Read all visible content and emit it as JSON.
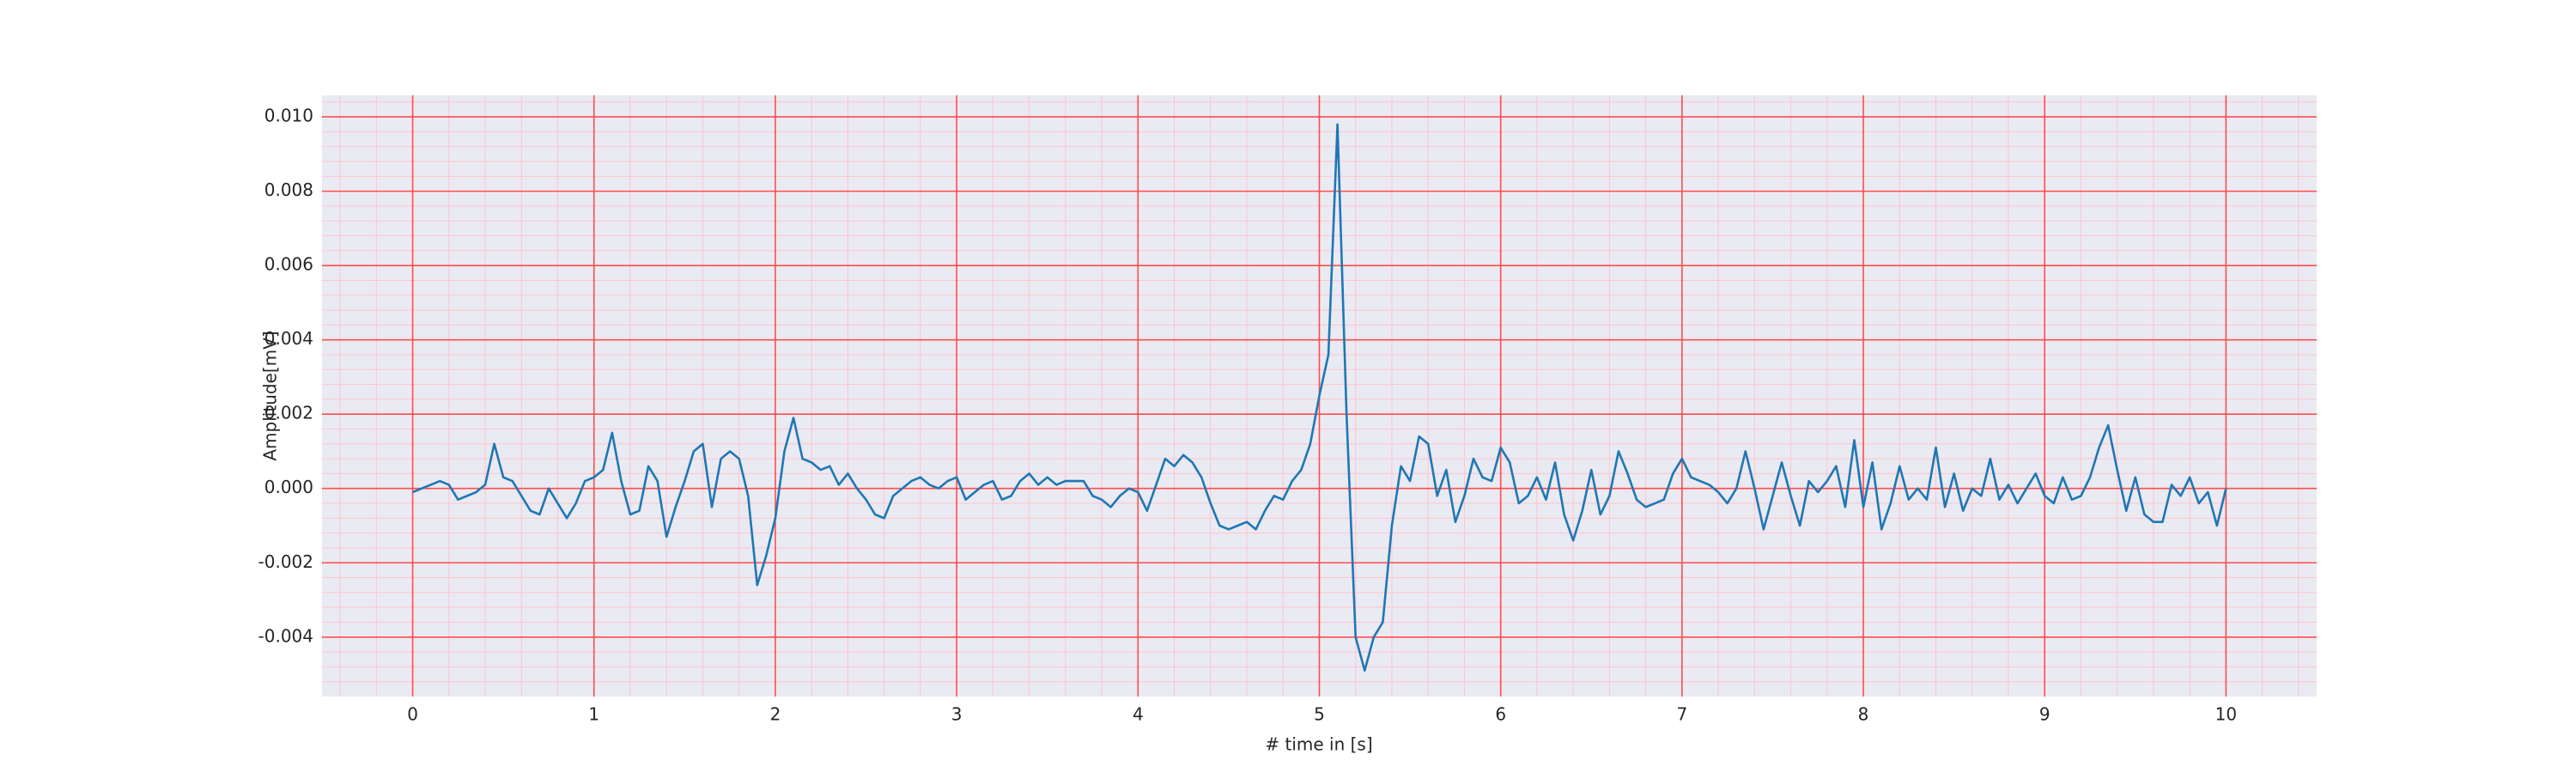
{
  "chart_data": {
    "type": "line",
    "x_label": "# time in [s]",
    "y_label": "Amplitude[mV]",
    "color": "#1f77b4",
    "plot_background": "#eaeaf2",
    "grid": true,
    "major_grid_color": "#ff4d4d",
    "minor_grid_color": "#ffc4cf",
    "xlim": [
      -0.5,
      10.5
    ],
    "ylim": [
      -0.0056,
      0.01058
    ],
    "xticks": [
      0,
      1,
      2,
      3,
      4,
      5,
      6,
      7,
      8,
      9,
      10
    ],
    "yticks": [
      -0.004,
      -0.002,
      {
        "value": 0,
        "label": "0.000"
      },
      0.002,
      0.004,
      0.006,
      0.008,
      {
        "value": 0.01,
        "label": "0.010"
      }
    ],
    "xminorticks": [
      -0.4,
      -0.2,
      0.2,
      0.4,
      0.6,
      0.8,
      1.2,
      1.4,
      1.6,
      1.8,
      2.2,
      2.4,
      2.6,
      2.8,
      3.2,
      3.4,
      3.6,
      3.8,
      4.2,
      4.4,
      4.6,
      4.8,
      5.2,
      5.4,
      5.6,
      5.8,
      6.2,
      6.4,
      6.6,
      6.8,
      7.2,
      7.4,
      7.6,
      7.8,
      8.2,
      8.4,
      8.6,
      8.8,
      9.2,
      9.4,
      9.6,
      9.8,
      10.2,
      10.4
    ],
    "yminorticks": [
      -0.0052,
      -0.0048,
      -0.0044,
      -0.0036,
      -0.0032,
      -0.0028,
      -0.0024,
      -0.0016,
      -0.0012,
      -0.0008,
      -0.0004,
      0.0004,
      0.0008,
      0.0012,
      0.0016,
      0.0024,
      0.0028,
      0.0032,
      0.0036,
      0.0044,
      0.0048,
      0.0052,
      0.0056,
      0.0064,
      0.0068,
      0.0072,
      0.0076,
      0.0084,
      0.0088,
      0.0092,
      0.0096,
      0.0104
    ],
    "x": [
      0,
      0.05,
      0.1,
      0.15,
      0.2,
      0.25,
      0.3,
      0.35,
      0.4,
      0.45,
      0.5,
      0.55,
      0.6,
      0.65,
      0.7,
      0.75,
      0.8,
      0.85,
      0.9,
      0.95,
      1,
      1.05,
      1.1,
      1.15,
      1.2,
      1.25,
      1.3,
      1.35,
      1.4,
      1.45,
      1.5,
      1.55,
      1.6,
      1.65,
      1.7,
      1.75,
      1.8,
      1.85,
      1.9,
      1.95,
      2,
      2.05,
      2.1,
      2.15,
      2.2,
      2.25,
      2.3,
      2.35,
      2.4,
      2.45,
      2.5,
      2.55,
      2.6,
      2.65,
      2.7,
      2.75,
      2.8,
      2.85,
      2.9,
      2.95,
      3,
      3.05,
      3.1,
      3.15,
      3.2,
      3.25,
      3.3,
      3.35,
      3.4,
      3.45,
      3.5,
      3.55,
      3.6,
      3.65,
      3.7,
      3.75,
      3.8,
      3.85,
      3.9,
      3.95,
      4,
      4.05,
      4.1,
      4.15,
      4.2,
      4.25,
      4.3,
      4.35,
      4.4,
      4.45,
      4.5,
      4.55,
      4.6,
      4.65,
      4.7,
      4.75,
      4.8,
      4.85,
      4.9,
      4.95,
      5,
      5.05,
      5.1,
      5.15,
      5.2,
      5.25,
      5.3,
      5.35,
      5.4,
      5.45,
      5.5,
      5.55,
      5.6,
      5.65,
      5.7,
      5.75,
      5.8,
      5.85,
      5.9,
      5.95,
      6,
      6.05,
      6.1,
      6.15,
      6.2,
      6.25,
      6.3,
      6.35,
      6.4,
      6.45,
      6.5,
      6.55,
      6.6,
      6.65,
      6.7,
      6.75,
      6.8,
      6.85,
      6.9,
      6.95,
      7,
      7.05,
      7.1,
      7.15,
      7.2,
      7.25,
      7.3,
      7.35,
      7.4,
      7.45,
      7.5,
      7.55,
      7.6,
      7.65,
      7.7,
      7.75,
      7.8,
      7.85,
      7.9,
      7.95,
      8,
      8.05,
      8.1,
      8.15,
      8.2,
      8.25,
      8.3,
      8.35,
      8.4,
      8.45,
      8.5,
      8.55,
      8.6,
      8.65,
      8.7,
      8.75,
      8.8,
      8.85,
      8.9,
      8.95,
      9,
      9.05,
      9.1,
      9.15,
      9.2,
      9.25,
      9.3,
      9.35,
      9.4,
      9.45,
      9.5,
      9.55,
      9.6,
      9.65,
      9.7,
      9.75,
      9.8,
      9.85,
      9.9,
      9.95,
      10
    ],
    "values": [
      -0.0001,
      0.0,
      0.0001,
      0.0002,
      0.0001,
      -0.0003,
      -0.0002,
      -0.0001,
      0.0001,
      0.0012,
      0.0003,
      0.0002,
      -0.0002,
      -0.0006,
      -0.0007,
      0.0,
      -0.0004,
      -0.0008,
      -0.0004,
      0.0002,
      0.0003,
      0.0005,
      0.0015,
      0.0002,
      -0.0007,
      -0.0006,
      0.0006,
      0.0002,
      -0.0013,
      -0.0005,
      0.0002,
      0.001,
      0.0012,
      -0.0005,
      0.0008,
      0.001,
      0.0008,
      -0.0002,
      -0.0026,
      -0.0018,
      -0.0008,
      0.001,
      0.0019,
      0.0008,
      0.0007,
      0.0005,
      0.0006,
      0.0001,
      0.0004,
      0.0,
      -0.0003,
      -0.0007,
      -0.0008,
      -0.0002,
      0.0,
      0.0002,
      0.0003,
      0.0001,
      0.0,
      0.0002,
      0.0003,
      -0.0003,
      -0.0001,
      0.0001,
      0.0002,
      -0.0003,
      -0.0002,
      0.0002,
      0.0004,
      0.0001,
      0.0003,
      0.0001,
      0.0002,
      0.0002,
      0.0002,
      -0.0002,
      -0.0003,
      -0.0005,
      -0.0002,
      0.0,
      -0.0001,
      -0.0006,
      0.0001,
      0.0008,
      0.0006,
      0.0009,
      0.0007,
      0.0003,
      -0.0004,
      -0.001,
      -0.0011,
      -0.001,
      -0.0009,
      -0.0011,
      -0.0006,
      -0.0002,
      -0.0003,
      0.0002,
      0.0005,
      0.0012,
      0.0025,
      0.0036,
      0.0098,
      0.002,
      -0.004,
      -0.0049,
      -0.004,
      -0.0036,
      -0.001,
      0.0006,
      0.0002,
      0.0014,
      0.0012,
      -0.0002,
      0.0005,
      -0.0009,
      -0.0002,
      0.0008,
      0.0003,
      0.0002,
      0.0011,
      0.0007,
      -0.0004,
      -0.0002,
      0.0003,
      -0.0003,
      0.0007,
      -0.0007,
      -0.0014,
      -0.0006,
      0.0005,
      -0.0007,
      -0.0002,
      0.001,
      0.0004,
      -0.0003,
      -0.0005,
      -0.0004,
      -0.0003,
      0.0004,
      0.0008,
      0.0003,
      0.0002,
      0.0001,
      -0.0001,
      -0.0004,
      0.0,
      0.001,
      0.0,
      -0.0011,
      -0.0002,
      0.0007,
      -0.0002,
      -0.001,
      0.0002,
      -0.0001,
      0.0002,
      0.0006,
      -0.0005,
      0.0013,
      -0.0005,
      0.0007,
      -0.0011,
      -0.0004,
      0.0006,
      -0.0003,
      0.0,
      -0.0003,
      0.0011,
      -0.0005,
      0.0004,
      -0.0006,
      0.0,
      -0.0002,
      0.0008,
      -0.0003,
      0.0001,
      -0.0004,
      0.0,
      0.0004,
      -0.0002,
      -0.0004,
      0.0003,
      -0.0003,
      -0.0002,
      0.0003,
      0.0011,
      0.0017,
      0.0005,
      -0.0006,
      0.0003,
      -0.0007,
      -0.0009,
      -0.0009,
      0.0001,
      -0.0002,
      0.0003,
      -0.0004,
      -0.0001,
      -0.001,
      0.0
    ]
  }
}
